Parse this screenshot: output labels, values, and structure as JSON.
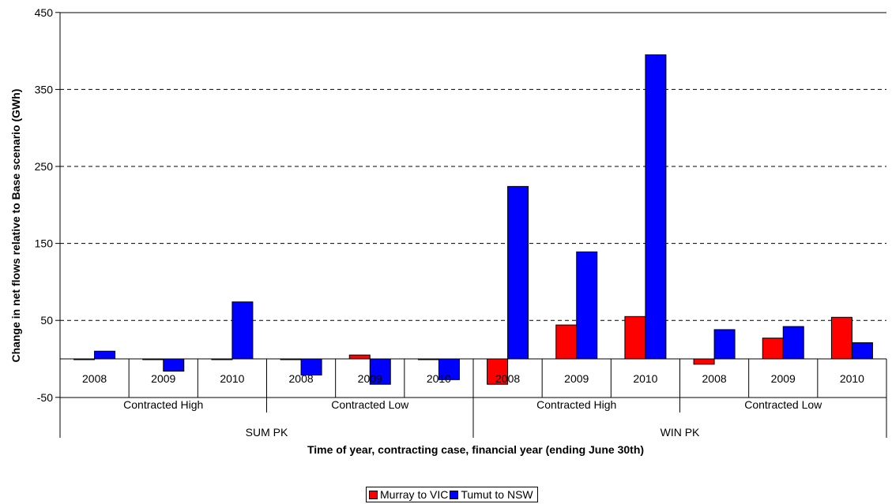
{
  "chart_data": {
    "type": "bar",
    "title": "",
    "xlabel": "Time of year, contracting case, financial year (ending June 30th)",
    "ylabel": "Change in net flows relative to Base scenario (GWh)",
    "ylim": [
      -50,
      450
    ],
    "yticks": [
      -50,
      50,
      150,
      250,
      350,
      450
    ],
    "grid": "horizontal dashed",
    "legend_position": "bottom",
    "categories": [
      {
        "season": "SUM PK",
        "case": "Contracted High",
        "year": "2008"
      },
      {
        "season": "SUM PK",
        "case": "Contracted High",
        "year": "2009"
      },
      {
        "season": "SUM PK",
        "case": "Contracted High",
        "year": "2010"
      },
      {
        "season": "SUM PK",
        "case": "Contracted Low",
        "year": "2008"
      },
      {
        "season": "SUM PK",
        "case": "Contracted Low",
        "year": "2009"
      },
      {
        "season": "SUM PK",
        "case": "Contracted Low",
        "year": "2010"
      },
      {
        "season": "WIN PK",
        "case": "Contracted High",
        "year": "2008"
      },
      {
        "season": "WIN PK",
        "case": "Contracted High",
        "year": "2009"
      },
      {
        "season": "WIN PK",
        "case": "Contracted High",
        "year": "2010"
      },
      {
        "season": "WIN PK",
        "case": "Contracted Low",
        "year": "2008"
      },
      {
        "season": "WIN PK",
        "case": "Contracted Low",
        "year": "2009"
      },
      {
        "season": "WIN PK",
        "case": "Contracted Low",
        "year": "2010"
      }
    ],
    "case_groups": [
      "Contracted High",
      "Contracted Low",
      "Contracted High",
      "Contracted Low"
    ],
    "season_groups": [
      "SUM PK",
      "WIN PK"
    ],
    "series": [
      {
        "name": "Murray to VIC",
        "color": "#ff0000",
        "values": [
          -1,
          0,
          -1,
          -1,
          5,
          0,
          -33,
          44,
          55,
          -7,
          27,
          54
        ]
      },
      {
        "name": "Tumut to NSW",
        "color": "#0000ff",
        "values": [
          10,
          -16,
          74,
          -21,
          -33,
          -27,
          224,
          139,
          395,
          38,
          42,
          21
        ]
      }
    ]
  }
}
